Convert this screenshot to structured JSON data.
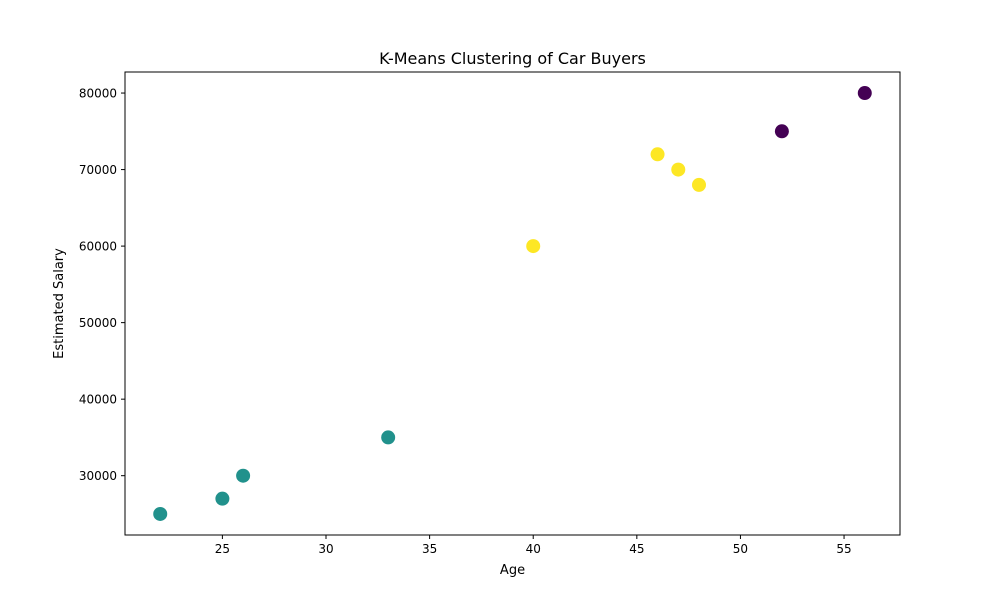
{
  "chart_data": {
    "type": "scatter",
    "title": "K-Means Clustering of Car Buyers",
    "xlabel": "Age",
    "ylabel": "Estimated Salary",
    "xlim": [
      20.3,
      57.7
    ],
    "ylim": [
      22250,
      82750
    ],
    "xticks": [
      25,
      30,
      35,
      40,
      45,
      50,
      55
    ],
    "yticks": [
      30000,
      40000,
      50000,
      60000,
      70000,
      80000
    ],
    "grid": false,
    "legend": false,
    "cluster_colors": [
      "#440154",
      "#21918c",
      "#fde725"
    ],
    "points": [
      {
        "x": 22,
        "y": 25000,
        "cluster": 1
      },
      {
        "x": 25,
        "y": 27000,
        "cluster": 1
      },
      {
        "x": 26,
        "y": 30000,
        "cluster": 1
      },
      {
        "x": 33,
        "y": 35000,
        "cluster": 1
      },
      {
        "x": 40,
        "y": 60000,
        "cluster": 2
      },
      {
        "x": 46,
        "y": 72000,
        "cluster": 2
      },
      {
        "x": 47,
        "y": 70000,
        "cluster": 2
      },
      {
        "x": 48,
        "y": 68000,
        "cluster": 2
      },
      {
        "x": 52,
        "y": 75000,
        "cluster": 0
      },
      {
        "x": 56,
        "y": 80000,
        "cluster": 0
      }
    ]
  }
}
